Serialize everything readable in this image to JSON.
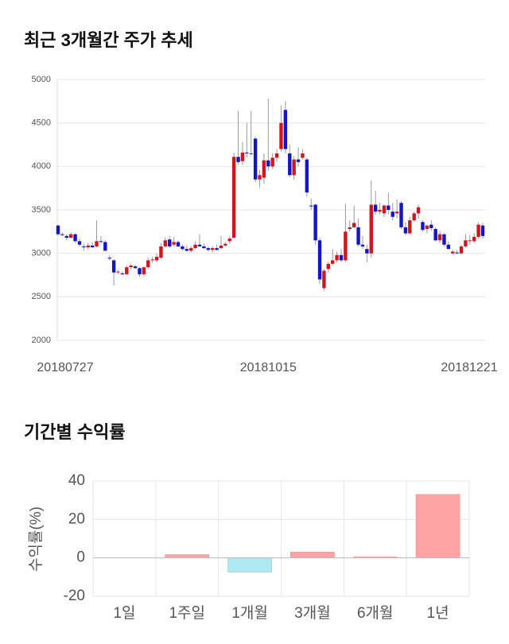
{
  "chart_data": [
    {
      "type": "candlestick",
      "title": "최근 3개월간 주가 추세",
      "categories": [
        "20180727",
        null,
        null,
        null,
        null,
        null,
        null,
        null,
        null,
        null,
        null,
        null,
        null,
        null,
        null,
        null,
        null,
        null,
        null,
        null,
        null,
        null,
        null,
        null,
        null,
        null,
        null,
        null,
        null,
        null,
        null,
        null,
        null,
        null,
        null,
        null,
        null,
        null,
        null,
        null,
        null,
        null,
        null,
        null,
        null,
        null,
        null,
        null,
        null,
        "20181015",
        null,
        null,
        null,
        null,
        null,
        null,
        null,
        null,
        null,
        null,
        null,
        null,
        null,
        null,
        null,
        null,
        null,
        null,
        null,
        null,
        null,
        null,
        null,
        null,
        null,
        null,
        null,
        null,
        null,
        null,
        null,
        null,
        null,
        null,
        null,
        null,
        null,
        null,
        null,
        null,
        null,
        null,
        null,
        null,
        null,
        null,
        null,
        null,
        null,
        "20181221"
      ],
      "open": [
        3320,
        3220,
        3200,
        3180,
        3220,
        3140,
        3080,
        3070,
        3090,
        3080,
        3140,
        3130,
        2950,
        2920,
        2790,
        2770,
        2760,
        2840,
        2850,
        2830,
        2760,
        2840,
        2920,
        2920,
        2950,
        3080,
        3160,
        3100,
        3130,
        3080,
        3050,
        3030,
        3060,
        3100,
        3080,
        3060,
        3040,
        3060,
        3060,
        3090,
        3140,
        3180,
        4110,
        4060,
        4160,
        4150,
        4320,
        3850,
        3870,
        4070,
        4000,
        4100,
        4200,
        4650,
        4150,
        3900,
        4080,
        4100,
        4080,
        3550,
        3560,
        3150,
        2600,
        2820,
        2880,
        2920,
        2980,
        2920,
        3280,
        3300,
        3300,
        3100,
        3050,
        3000,
        3560,
        3480,
        3460,
        3550,
        3480,
        3460,
        3580,
        3300,
        3230,
        3380,
        3460,
        3360,
        3280,
        3330,
        3280,
        3150,
        3220,
        3100,
        3000,
        3010,
        3000,
        3080,
        3150,
        3140,
        3190,
        3320
      ],
      "high": [
        3330,
        3240,
        3220,
        3240,
        3230,
        3170,
        3110,
        3120,
        3130,
        3380,
        3200,
        3150,
        2980,
        2930,
        2810,
        2790,
        2860,
        2880,
        2870,
        2840,
        2850,
        2950,
        2960,
        3000,
        3120,
        3180,
        3200,
        3190,
        3150,
        3100,
        3090,
        3080,
        3140,
        3220,
        3110,
        3080,
        3080,
        3100,
        3200,
        3130,
        3200,
        4160,
        4640,
        4280,
        4500,
        4640,
        4340,
        3960,
        4150,
        4780,
        4150,
        4200,
        4700,
        4750,
        4250,
        4120,
        4220,
        4200,
        4100,
        3630,
        3570,
        3180,
        2820,
        2900,
        3050,
        3020,
        3050,
        3570,
        3380,
        3550,
        3400,
        3200,
        3100,
        3840,
        3720,
        3580,
        3560,
        3700,
        3580,
        3620,
        3600,
        3360,
        3420,
        3480,
        3560,
        3380,
        3330,
        3380,
        3300,
        3260,
        3230,
        3140,
        3040,
        3040,
        3100,
        3220,
        3210,
        3230,
        3360,
        3350
      ],
      "low": [
        3210,
        3200,
        3150,
        3170,
        3120,
        3080,
        3030,
        3050,
        3060,
        3070,
        3120,
        3030,
        2920,
        2630,
        2760,
        2750,
        2750,
        2810,
        2820,
        2730,
        2740,
        2820,
        2890,
        2900,
        2930,
        3060,
        3060,
        3080,
        3070,
        3030,
        3020,
        3010,
        3050,
        3080,
        3050,
        3020,
        3010,
        3030,
        3050,
        3080,
        3110,
        3180,
        4020,
        4020,
        4100,
        4130,
        3820,
        3760,
        3800,
        3950,
        3970,
        4050,
        4170,
        4150,
        3880,
        3850,
        4000,
        4080,
        3650,
        3500,
        3100,
        2650,
        2570,
        2780,
        2860,
        2890,
        2900,
        2900,
        3250,
        3290,
        3080,
        3050,
        2900,
        2950,
        3450,
        3450,
        3420,
        3450,
        3380,
        3400,
        3280,
        3210,
        3220,
        3360,
        3400,
        3250,
        3230,
        3260,
        3140,
        3120,
        3080,
        3050,
        2980,
        2990,
        2990,
        3060,
        3100,
        3120,
        3170,
        3170
      ],
      "close": [
        3220,
        3210,
        3180,
        3220,
        3140,
        3100,
        3070,
        3090,
        3070,
        3140,
        3130,
        3030,
        2940,
        2780,
        2790,
        2760,
        2840,
        2860,
        2830,
        2760,
        2840,
        2920,
        2930,
        2960,
        3080,
        3150,
        3080,
        3130,
        3080,
        3050,
        3030,
        3060,
        3100,
        3080,
        3060,
        3040,
        3060,
        3040,
        3090,
        3110,
        3170,
        4110,
        4050,
        4160,
        4150,
        4150,
        3850,
        3900,
        4070,
        4000,
        4100,
        4150,
        4500,
        4200,
        3900,
        4080,
        4050,
        4150,
        3700,
        3540,
        3150,
        2700,
        2800,
        2880,
        2920,
        2980,
        2920,
        3250,
        3300,
        3350,
        3100,
        3080,
        3000,
        3560,
        3480,
        3500,
        3550,
        3500,
        3420,
        3480,
        3300,
        3230,
        3380,
        3460,
        3530,
        3270,
        3320,
        3290,
        3150,
        3220,
        3100,
        3050,
        3020,
        3000,
        3080,
        3150,
        3150,
        3190,
        3330,
        3200
      ],
      "up_color": "#d0161d",
      "down_color": "#1414c8",
      "ylim": [
        2000,
        5000
      ],
      "yticks": [
        2000,
        2500,
        3000,
        3500,
        4000,
        4500,
        5000
      ],
      "grid": true
    },
    {
      "type": "bar",
      "title": "기간별 수익률",
      "y_label": "수익률(%)",
      "categories": [
        "1일",
        "1주일",
        "1개월",
        "3개월",
        "6개월",
        "1년"
      ],
      "values": [
        0,
        1.7,
        -7.5,
        3,
        0.5,
        33
      ],
      "positive_color": "#ffa4a4",
      "negative_color": "#aee8f0",
      "ylim": [
        -20,
        40
      ],
      "yticks": [
        -20,
        0,
        20,
        40
      ],
      "grid": true
    }
  ]
}
